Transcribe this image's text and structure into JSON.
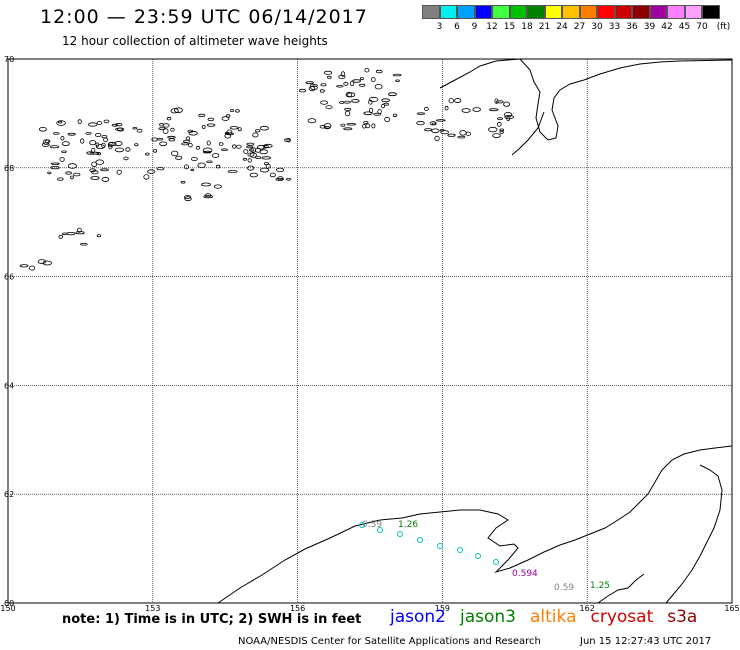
{
  "title": "12:00 — 23:59 UTC 06/14/2017",
  "subtitle": "12 hour collection of altimeter wave heights",
  "legend": {
    "colors": [
      "#808080",
      "#00f0f0",
      "#00a0ff",
      "#0000ff",
      "#40ff40",
      "#00c000",
      "#008000",
      "#ffff00",
      "#ffc000",
      "#ff8000",
      "#ff0000",
      "#d00000",
      "#900000",
      "#a000a0",
      "#ff80ff",
      "#ffa0ff",
      "#000000"
    ],
    "labels": [
      "3",
      "6",
      "9",
      "12",
      "15",
      "18",
      "21",
      "24",
      "27",
      "30",
      "33",
      "36",
      "39",
      "42",
      "45",
      "70"
    ],
    "unit": "(ft)"
  },
  "axes": {
    "lon_labels": [
      "150",
      "153",
      "156",
      "159",
      "162",
      "165"
    ],
    "lat_labels": [
      "70",
      "68",
      "66",
      "64",
      "62",
      "60"
    ]
  },
  "tracks": [
    {
      "label": "0.59",
      "color": "#808080"
    },
    {
      "label": "1.26",
      "color": "#008000"
    },
    {
      "label": "0.594",
      "color": "#a000a0"
    },
    {
      "label": "0.59",
      "color": "#808080"
    },
    {
      "label": "1.25",
      "color": "#008000"
    }
  ],
  "footer": {
    "note": "note: 1) Time is in UTC; 2) SWH is in feet",
    "satellites": [
      {
        "name": "jason2",
        "color": "#0000ff"
      },
      {
        "name": "jason3",
        "color": "#008000"
      },
      {
        "name": "altika",
        "color": "#ff8000"
      },
      {
        "name": "cryosat",
        "color": "#d00000"
      },
      {
        "name": "s3a",
        "color": "#900000"
      }
    ],
    "credit": "NOAA/NESDIS Center for Satellite Applications and Research",
    "timestamp": "Jun 15 12:27:43 UTC 2017"
  }
}
